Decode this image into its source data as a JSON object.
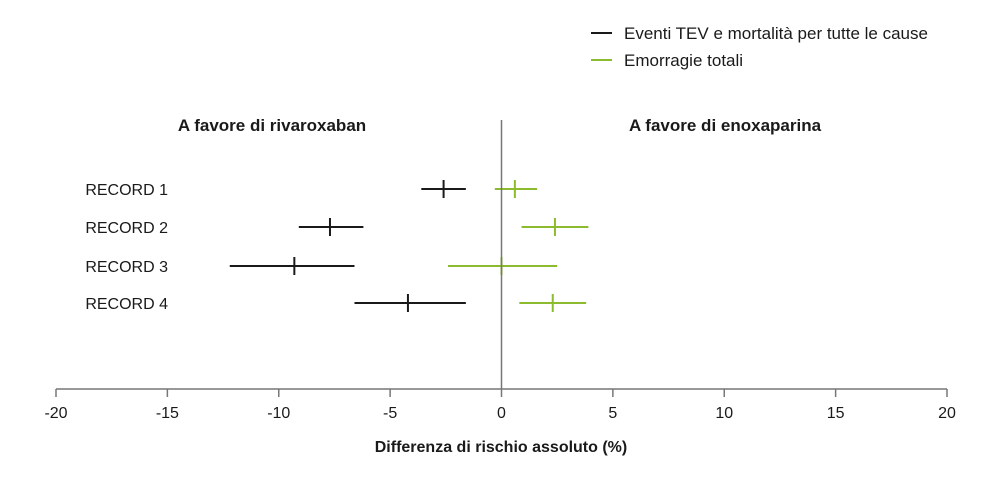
{
  "chart_data": {
    "type": "forest",
    "xlabel": "Differenza di rischio assoluto (%)",
    "xlim": [
      -20,
      20
    ],
    "xticks": [
      -20,
      -15,
      -10,
      -5,
      0,
      5,
      10,
      15,
      20
    ],
    "grid": false,
    "legend_position": "top-right",
    "annotations": {
      "left": "A favore di rivaroxaban",
      "right": "A favore di enoxaparina"
    },
    "categories": [
      "RECORD 1",
      "RECORD 2",
      "RECORD 3",
      "RECORD 4"
    ],
    "series": [
      {
        "name": "Eventi TEV e mortalità per tutte le cause",
        "color": "#1a1a1a",
        "points": [
          {
            "category": "RECORD 1",
            "estimate": -2.6,
            "low": -3.6,
            "high": -1.6
          },
          {
            "category": "RECORD 2",
            "estimate": -7.7,
            "low": -9.1,
            "high": -6.2
          },
          {
            "category": "RECORD 3",
            "estimate": -9.3,
            "low": -12.2,
            "high": -6.6
          },
          {
            "category": "RECORD 4",
            "estimate": -4.2,
            "low": -6.6,
            "high": -1.6
          }
        ]
      },
      {
        "name": "Emorragie totali",
        "color": "#8dbb2f",
        "points": [
          {
            "category": "RECORD 1",
            "estimate": 0.6,
            "low": -0.3,
            "high": 1.6
          },
          {
            "category": "RECORD 2",
            "estimate": 2.4,
            "low": 0.9,
            "high": 3.9
          },
          {
            "category": "RECORD 3",
            "estimate": 0.0,
            "low": -2.4,
            "high": 2.5
          },
          {
            "category": "RECORD 4",
            "estimate": 2.3,
            "low": 0.8,
            "high": 3.8
          }
        ]
      }
    ]
  }
}
